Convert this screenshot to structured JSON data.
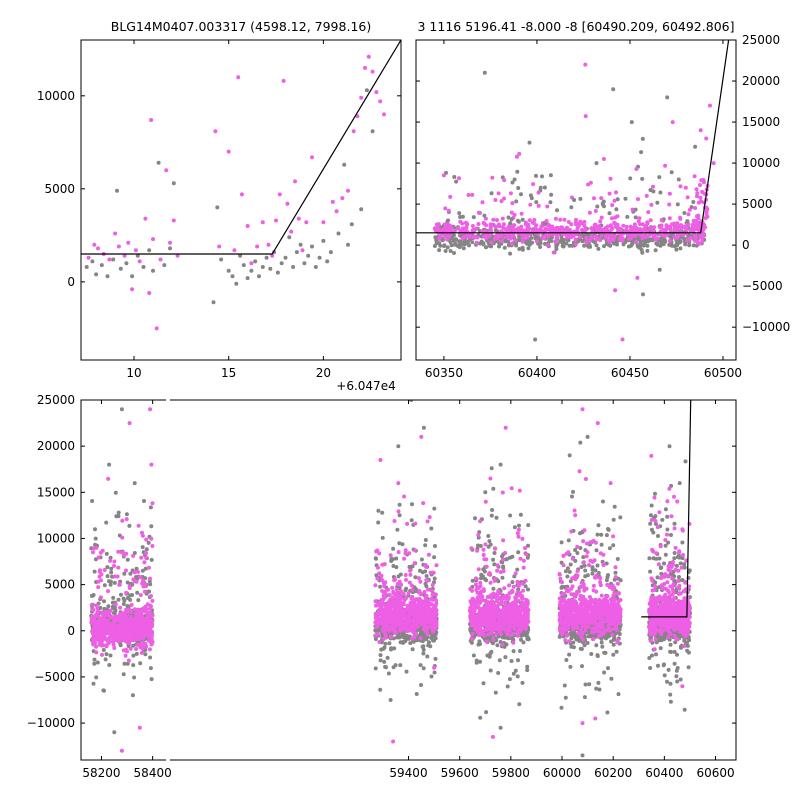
{
  "chart_data": [
    {
      "type": "scatter",
      "title": "BLG14M0407.003317 (4598.12, 7998.16)",
      "xlim": [
        7.2,
        24.1
      ],
      "ylim": [
        -4200,
        13000
      ],
      "x_offset_label": "+6.047e4",
      "x_ticks": [
        10,
        15,
        20
      ],
      "y_ticks": [
        0,
        5000,
        10000
      ],
      "y_axis_side": "left",
      "colors": {
        "series_a": "#ef5fe6",
        "series_b": "#858585",
        "model": "#000000"
      },
      "model_line": {
        "x": [
          7.2,
          17.3,
          24.1
        ],
        "y": [
          1500,
          1500,
          13000
        ]
      },
      "series": [
        {
          "role": "gray",
          "points": [
            [
              7.5,
              800
            ],
            [
              7.8,
              1100
            ],
            [
              8.0,
              400
            ],
            [
              8.3,
              900
            ],
            [
              8.6,
              300
            ],
            [
              8.9,
              1200
            ],
            [
              9.1,
              4900
            ],
            [
              9.3,
              700
            ],
            [
              9.6,
              1000
            ],
            [
              9.9,
              300
            ],
            [
              10.2,
              1400
            ],
            [
              10.5,
              800
            ],
            [
              10.8,
              1700
            ],
            [
              11.0,
              600
            ],
            [
              11.3,
              6400
            ],
            [
              11.6,
              900
            ],
            [
              11.9,
              1800
            ],
            [
              12.1,
              5300
            ],
            [
              14.2,
              -1100
            ],
            [
              14.4,
              4000
            ],
            [
              14.6,
              1200
            ],
            [
              15.0,
              600
            ],
            [
              15.2,
              300
            ],
            [
              15.4,
              -100
            ],
            [
              15.6,
              1400
            ],
            [
              15.8,
              900
            ],
            [
              16.0,
              200
            ],
            [
              16.2,
              600
            ],
            [
              16.4,
              1100
            ],
            [
              16.6,
              300
            ],
            [
              16.8,
              800
            ],
            [
              17.0,
              1300
            ],
            [
              17.2,
              700
            ],
            [
              17.4,
              1600
            ],
            [
              17.6,
              500
            ],
            [
              17.8,
              1000
            ],
            [
              18.0,
              1300
            ],
            [
              18.2,
              2400
            ],
            [
              18.4,
              800
            ],
            [
              18.6,
              1600
            ],
            [
              18.8,
              2000
            ],
            [
              19.0,
              1000
            ],
            [
              19.2,
              1400
            ],
            [
              19.4,
              1900
            ],
            [
              19.6,
              800
            ],
            [
              19.8,
              1300
            ],
            [
              20.0,
              2200
            ],
            [
              20.2,
              1100
            ],
            [
              20.4,
              1600
            ],
            [
              20.8,
              2600
            ],
            [
              21.1,
              6300
            ],
            [
              21.3,
              2000
            ],
            [
              21.5,
              3100
            ],
            [
              22.0,
              3900
            ],
            [
              22.3,
              10300
            ],
            [
              22.6,
              8100
            ]
          ]
        },
        {
          "role": "magenta",
          "points": [
            [
              7.6,
              1300
            ],
            [
              7.9,
              2000
            ],
            [
              8.1,
              1800
            ],
            [
              8.4,
              1500
            ],
            [
              8.7,
              1200
            ],
            [
              9.0,
              2600
            ],
            [
              9.2,
              1900
            ],
            [
              9.5,
              1400
            ],
            [
              9.7,
              2100
            ],
            [
              9.9,
              -400
            ],
            [
              10.1,
              1700
            ],
            [
              10.3,
              1100
            ],
            [
              10.6,
              3400
            ],
            [
              10.8,
              -600
            ],
            [
              10.9,
              8700
            ],
            [
              11.0,
              2300
            ],
            [
              11.2,
              -2500
            ],
            [
              11.4,
              1200
            ],
            [
              11.7,
              6000
            ],
            [
              11.9,
              2100
            ],
            [
              12.1,
              3300
            ],
            [
              12.3,
              1400
            ],
            [
              14.3,
              8100
            ],
            [
              14.5,
              1900
            ],
            [
              15.0,
              7000
            ],
            [
              15.3,
              1700
            ],
            [
              15.5,
              11000
            ],
            [
              15.7,
              4700
            ],
            [
              16.0,
              3000
            ],
            [
              16.2,
              1000
            ],
            [
              16.5,
              1900
            ],
            [
              16.8,
              3200
            ],
            [
              17.1,
              2000
            ],
            [
              17.3,
              1400
            ],
            [
              17.5,
              3300
            ],
            [
              17.7,
              4700
            ],
            [
              17.9,
              10800
            ],
            [
              18.1,
              4200
            ],
            [
              18.3,
              2700
            ],
            [
              18.5,
              5400
            ],
            [
              18.7,
              3400
            ],
            [
              18.9,
              1700
            ],
            [
              19.1,
              3200
            ],
            [
              19.4,
              6700
            ],
            [
              20.0,
              3200
            ],
            [
              20.5,
              4300
            ],
            [
              20.7,
              3800
            ],
            [
              21.0,
              4500
            ],
            [
              21.3,
              4900
            ],
            [
              21.6,
              8100
            ],
            [
              21.8,
              8900
            ],
            [
              22.0,
              9900
            ],
            [
              22.2,
              11500
            ],
            [
              22.4,
              12100
            ],
            [
              22.6,
              11300
            ],
            [
              22.8,
              10200
            ],
            [
              23.0,
              9700
            ],
            [
              23.2,
              9000
            ]
          ]
        }
      ]
    },
    {
      "type": "scatter",
      "title": "3 1116 5196.41 -8.000 -8 [60490.209, 60492.806]",
      "xlim": [
        60335,
        60507
      ],
      "ylim": [
        -14000,
        25000
      ],
      "x_ticks": [
        60350,
        60400,
        60450,
        60500
      ],
      "y_ticks": [
        -10000,
        -5000,
        0,
        5000,
        10000,
        15000,
        20000,
        25000
      ],
      "y_axis_side": "right",
      "colors": {
        "series_a": "#ef5fe6",
        "series_b": "#858585",
        "model": "#000000"
      },
      "model_line": {
        "x": [
          60335,
          60488,
          60503
        ],
        "y": [
          1500,
          1500,
          25000
        ]
      },
      "series": [
        {
          "role": "gray",
          "outliers": [
            [
              60372,
              21000
            ],
            [
              60388,
              8000
            ],
            [
              60396,
              12500
            ],
            [
              60402,
              7000
            ],
            [
              60420,
              5500
            ],
            [
              60432,
              10000
            ],
            [
              60441,
              19000
            ],
            [
              60451,
              15000
            ],
            [
              60470,
              18000
            ],
            [
              60485,
              12000
            ],
            [
              60399,
              -11500
            ],
            [
              60457,
              -6000
            ],
            [
              60466,
              -3000
            ]
          ]
        },
        {
          "role": "magenta",
          "outliers": [
            [
              60350,
              8500
            ],
            [
              60376,
              8200
            ],
            [
              60386,
              6300
            ],
            [
              60409,
              -900
            ],
            [
              60426,
              22000
            ],
            [
              60429,
              7600
            ],
            [
              60436,
              10500
            ],
            [
              60442,
              -5500
            ],
            [
              60446,
              -11500
            ],
            [
              60454,
              -4000
            ],
            [
              60459,
              6000
            ],
            [
              60473,
              15000
            ],
            [
              60480,
              7000
            ],
            [
              60488,
              14000
            ],
            [
              60491,
              13000
            ],
            [
              60493,
              17000
            ],
            [
              60495,
              10000
            ]
          ]
        }
      ]
    },
    {
      "type": "scatter",
      "title": "",
      "xlim": [
        58120,
        60680
      ],
      "ylim": [
        -14000,
        25000
      ],
      "x_ticks": [
        58200,
        58400,
        59400,
        59600,
        59800,
        60000,
        60200,
        60400,
        60600
      ],
      "y_ticks": [
        -10000,
        -5000,
        0,
        5000,
        10000,
        15000,
        20000,
        25000
      ],
      "y_axis_side": "left",
      "colors": {
        "series_a": "#ef5fe6",
        "series_b": "#858585",
        "model": "#000000"
      },
      "model_line": {
        "x": [
          60310,
          60488,
          60503
        ],
        "y": [
          1500,
          1500,
          25000
        ]
      },
      "season_ranges": [
        [
          58160,
          58400
        ],
        [
          59270,
          59510
        ],
        [
          59640,
          59870
        ],
        [
          59990,
          60230
        ],
        [
          60340,
          60500
        ]
      ],
      "series": [
        {
          "role": "gray",
          "outliers": [
            [
              58230,
              18000
            ],
            [
              58280,
              24000
            ],
            [
              58330,
              16000
            ],
            [
              59360,
              20000
            ],
            [
              59410,
              25000
            ],
            [
              59460,
              22000
            ],
            [
              59700,
              15000
            ],
            [
              59760,
              18000
            ],
            [
              60030,
              19000
            ],
            [
              60100,
              21000
            ],
            [
              60160,
              14000
            ],
            [
              60420,
              20000
            ],
            [
              60460,
              16000
            ],
            [
              58250,
              -11000
            ],
            [
              59330,
              -7500
            ],
            [
              59760,
              -10500
            ],
            [
              60080,
              -13500
            ],
            [
              60450,
              -5500
            ]
          ]
        },
        {
          "role": "magenta",
          "outliers": [
            [
              58180,
              9000
            ],
            [
              58250,
              7500
            ],
            [
              58310,
              22500
            ],
            [
              58390,
              24000
            ],
            [
              58395,
              18000
            ],
            [
              59290,
              18500
            ],
            [
              59360,
              16000
            ],
            [
              59450,
              21000
            ],
            [
              59720,
              16500
            ],
            [
              59780,
              22000
            ],
            [
              60080,
              24000
            ],
            [
              60140,
              22500
            ],
            [
              60190,
              16000
            ],
            [
              60450,
              14000
            ],
            [
              60470,
              11000
            ],
            [
              58280,
              -13000
            ],
            [
              58350,
              -10500
            ],
            [
              59340,
              -12000
            ],
            [
              59500,
              -4000
            ],
            [
              59730,
              -11500
            ],
            [
              60080,
              -10000
            ],
            [
              60130,
              -9500
            ],
            [
              60470,
              -6000
            ]
          ]
        }
      ]
    }
  ]
}
